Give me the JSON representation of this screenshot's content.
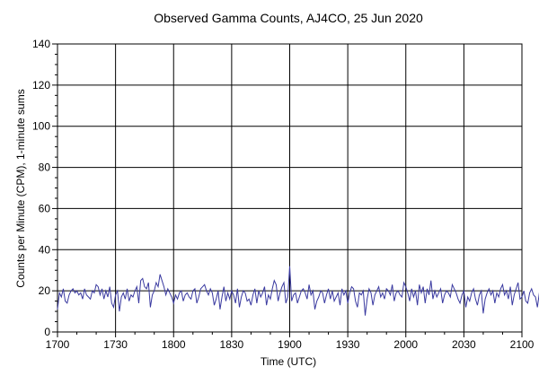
{
  "chart_data": {
    "type": "line",
    "title": "Observed Gamma Counts, AJ4CO, 25 Jun 2020",
    "xlabel": "Time (UTC)",
    "ylabel": "Counts per Minute (CPM), 1-minute sums",
    "xlim": [
      "17:00",
      "21:00"
    ],
    "ylim": [
      0,
      140
    ],
    "x_ticks": [
      "1700",
      "1730",
      "1800",
      "1830",
      "1900",
      "1930",
      "2000",
      "2030",
      "2100"
    ],
    "y_ticks": [
      "0",
      "20",
      "40",
      "60",
      "80",
      "100",
      "120",
      "140"
    ],
    "grid": true,
    "legend": "none",
    "line_color": "#3a3aa0",
    "x_start": "17:00",
    "x_step_minutes": 1,
    "series": [
      {
        "values": [
          11,
          19,
          17,
          21,
          15,
          14,
          18,
          20,
          21,
          19,
          20,
          18,
          19,
          16,
          21,
          18,
          17,
          16,
          20,
          19,
          23,
          22,
          18,
          21,
          16,
          20,
          17,
          22,
          14,
          12,
          18,
          20,
          10,
          17,
          19,
          16,
          21,
          15,
          18,
          17,
          20,
          22,
          14,
          25,
          26,
          22,
          21,
          24,
          12,
          18,
          20,
          24,
          22,
          28,
          25,
          22,
          18,
          21,
          19,
          17,
          14,
          18,
          16,
          19,
          20,
          15,
          18,
          19,
          17,
          16,
          20,
          21,
          14,
          17,
          21,
          22,
          23,
          20,
          18,
          21,
          19,
          13,
          16,
          20,
          11,
          17,
          22,
          15,
          19,
          16,
          20,
          18,
          14,
          21,
          12,
          17,
          20,
          19,
          15,
          16,
          13,
          18,
          21,
          14,
          20,
          17,
          19,
          22,
          13,
          18,
          16,
          21,
          25,
          23,
          15,
          19,
          22,
          24,
          14,
          17,
          32,
          15,
          18,
          19,
          14,
          17,
          20,
          21,
          19,
          16,
          23,
          18,
          20,
          11,
          15,
          17,
          20,
          19,
          14,
          18,
          21,
          16,
          20,
          15,
          17,
          19,
          13,
          21,
          18,
          20,
          14,
          19,
          22,
          21,
          15,
          12,
          19,
          18,
          20,
          8,
          16,
          21,
          19,
          13,
          18,
          20,
          22,
          17,
          19,
          16,
          21,
          20,
          18,
          23,
          15,
          19,
          20,
          18,
          17,
          24,
          22,
          19,
          15,
          21,
          17,
          20,
          13,
          23,
          19,
          22,
          14,
          21,
          18,
          25,
          16,
          20,
          17,
          19,
          21,
          14,
          18,
          20,
          19,
          17,
          23,
          21,
          19,
          16,
          14,
          18,
          20,
          12,
          17,
          15,
          19,
          21,
          16,
          13,
          18,
          20,
          9,
          16,
          19,
          21,
          18,
          20,
          14,
          19,
          17,
          21,
          23,
          18,
          20,
          16,
          22,
          13,
          18,
          21,
          24,
          16,
          17,
          20,
          15,
          14,
          19,
          21,
          18,
          17,
          12,
          19,
          21,
          17,
          20,
          15,
          22,
          21,
          10,
          17,
          19,
          20,
          16,
          22,
          14,
          24,
          18,
          20,
          21,
          19,
          14,
          16,
          19,
          21,
          17,
          18,
          15,
          20,
          22,
          12,
          19,
          17,
          20,
          18,
          21,
          16,
          14,
          19,
          20,
          21,
          18,
          12,
          17,
          23,
          18,
          20,
          15,
          19,
          21,
          24,
          17,
          12,
          18,
          20,
          16,
          19,
          17,
          14,
          19,
          22,
          13,
          21,
          12,
          19,
          17,
          20,
          18,
          16,
          24,
          15,
          21,
          19,
          22,
          17,
          18,
          20,
          14,
          19,
          17,
          16,
          19,
          21,
          18,
          10,
          19,
          17,
          20,
          18,
          16,
          21,
          19,
          14,
          17,
          20,
          18,
          16,
          17,
          19,
          14,
          16,
          18,
          19,
          17,
          18,
          20,
          21,
          13,
          17,
          19,
          22,
          18,
          17,
          20,
          15,
          13,
          18,
          20,
          19,
          21,
          16,
          19,
          18,
          12,
          17,
          20,
          19,
          15,
          21,
          18,
          16,
          17,
          18,
          20,
          11,
          17,
          19,
          21,
          15,
          18,
          16,
          20,
          17,
          19,
          14,
          18,
          21,
          19,
          20,
          17,
          10,
          19,
          18,
          20,
          17,
          16,
          18,
          19,
          20,
          17,
          15,
          18,
          16,
          19,
          17,
          14,
          20,
          18,
          16,
          15,
          19,
          20,
          17,
          18
        ]
      }
    ]
  }
}
